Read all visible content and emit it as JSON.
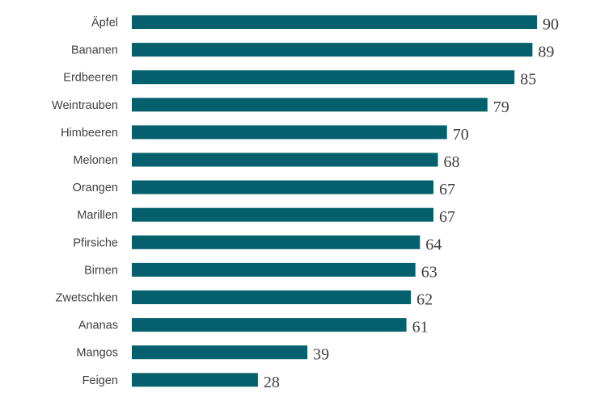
{
  "chart_data": {
    "type": "bar",
    "orientation": "horizontal",
    "categories": [
      "Äpfel",
      "Bananen",
      "Erdbeeren",
      "Weintrauben",
      "Himbeeren",
      "Melonen",
      "Orangen",
      "Marillen",
      "Pfirsiche",
      "Birnen",
      "Zwetschken",
      "Ananas",
      "Mangos",
      "Feigen"
    ],
    "values": [
      90,
      89,
      85,
      79,
      70,
      68,
      67,
      67,
      64,
      63,
      62,
      61,
      39,
      28
    ],
    "title": "",
    "xlabel": "",
    "ylabel": "",
    "xlim": [
      0,
      90
    ],
    "grid": false,
    "legend": "none",
    "bar_color": "#05606e",
    "data_labels": true
  }
}
